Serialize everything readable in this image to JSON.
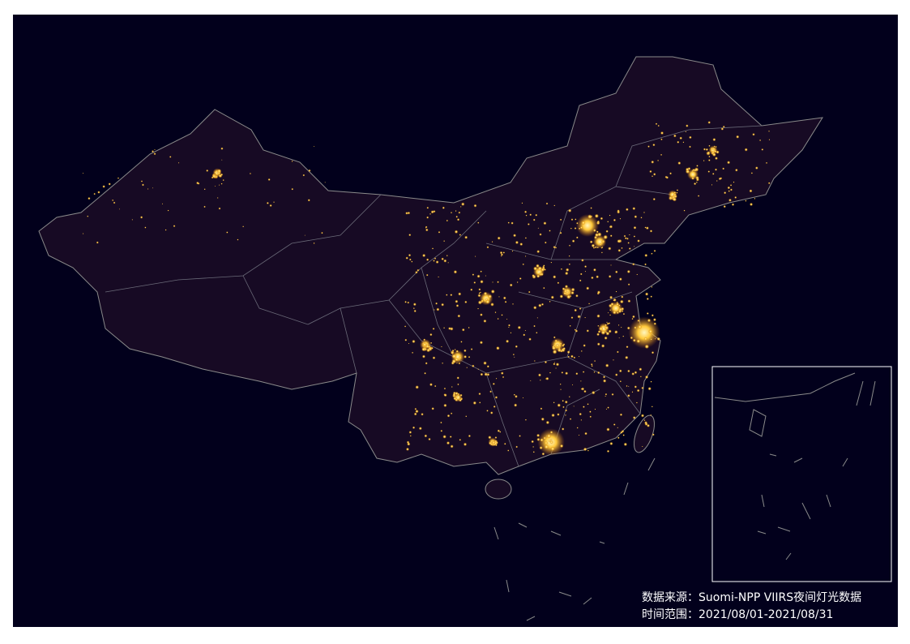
{
  "source_note": {
    "source": "数据来源：Suomi-NPP VIIRS夜间灯光数据",
    "period": "时间范围：2021/08/01-2021/08/31"
  }
}
